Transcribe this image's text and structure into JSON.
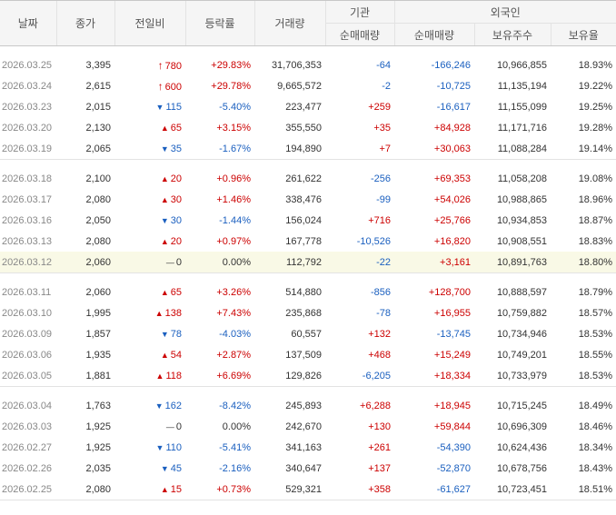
{
  "colors": {
    "up": "#cc0000",
    "down": "#1a5fbf",
    "header_bg": "#f5f5f5",
    "highlight_bg": "#f9f9e6"
  },
  "headers": {
    "date": "날짜",
    "close": "종가",
    "change": "전일비",
    "rate": "등락률",
    "volume": "거래량",
    "inst_group": "기관",
    "inst_net": "순매매량",
    "foreign_group": "외국인",
    "foreign_net": "순매매량",
    "foreign_holdings": "보유주수",
    "foreign_ratio": "보유율"
  },
  "groups": [
    [
      {
        "date": "2026.03.25",
        "close": "3,395",
        "change": "780",
        "change_dir": "upper",
        "rate": "+29.83%",
        "volume": "31,706,353",
        "inst": "-64",
        "foreign": "-166,246",
        "holdings": "10,966,855",
        "ratio": "18.93%"
      },
      {
        "date": "2026.03.24",
        "close": "2,615",
        "change": "600",
        "change_dir": "upper",
        "rate": "+29.78%",
        "volume": "9,665,572",
        "inst": "-2",
        "foreign": "-10,725",
        "holdings": "11,135,194",
        "ratio": "19.22%"
      },
      {
        "date": "2026.03.23",
        "close": "2,015",
        "change": "115",
        "change_dir": "down",
        "rate": "-5.40%",
        "volume": "223,477",
        "inst": "+259",
        "foreign": "-16,617",
        "holdings": "11,155,099",
        "ratio": "19.25%"
      },
      {
        "date": "2026.03.20",
        "close": "2,130",
        "change": "65",
        "change_dir": "up",
        "rate": "+3.15%",
        "volume": "355,550",
        "inst": "+35",
        "foreign": "+84,928",
        "holdings": "11,171,716",
        "ratio": "19.28%"
      },
      {
        "date": "2026.03.19",
        "close": "2,065",
        "change": "35",
        "change_dir": "down",
        "rate": "-1.67%",
        "volume": "194,890",
        "inst": "+7",
        "foreign": "+30,063",
        "holdings": "11,088,284",
        "ratio": "19.14%"
      }
    ],
    [
      {
        "date": "2026.03.18",
        "close": "2,100",
        "change": "20",
        "change_dir": "up",
        "rate": "+0.96%",
        "volume": "261,622",
        "inst": "-256",
        "foreign": "+69,353",
        "holdings": "11,058,208",
        "ratio": "19.08%"
      },
      {
        "date": "2026.03.17",
        "close": "2,080",
        "change": "30",
        "change_dir": "up",
        "rate": "+1.46%",
        "volume": "338,476",
        "inst": "-99",
        "foreign": "+54,026",
        "holdings": "10,988,865",
        "ratio": "18.96%"
      },
      {
        "date": "2026.03.16",
        "close": "2,050",
        "change": "30",
        "change_dir": "down",
        "rate": "-1.44%",
        "volume": "156,024",
        "inst": "+716",
        "foreign": "+25,766",
        "holdings": "10,934,853",
        "ratio": "18.87%"
      },
      {
        "date": "2026.03.13",
        "close": "2,080",
        "change": "20",
        "change_dir": "up",
        "rate": "+0.97%",
        "volume": "167,778",
        "inst": "-10,526",
        "foreign": "+16,820",
        "holdings": "10,908,551",
        "ratio": "18.83%"
      },
      {
        "date": "2026.03.12",
        "close": "2,060",
        "change": "0",
        "change_dir": "flat",
        "rate": "0.00%",
        "volume": "112,792",
        "inst": "-22",
        "foreign": "+3,161",
        "holdings": "10,891,763",
        "ratio": "18.80%",
        "highlight": true
      }
    ],
    [
      {
        "date": "2026.03.11",
        "close": "2,060",
        "change": "65",
        "change_dir": "up",
        "rate": "+3.26%",
        "volume": "514,880",
        "inst": "-856",
        "foreign": "+128,700",
        "holdings": "10,888,597",
        "ratio": "18.79%"
      },
      {
        "date": "2026.03.10",
        "close": "1,995",
        "change": "138",
        "change_dir": "up",
        "rate": "+7.43%",
        "volume": "235,868",
        "inst": "-78",
        "foreign": "+16,955",
        "holdings": "10,759,882",
        "ratio": "18.57%"
      },
      {
        "date": "2026.03.09",
        "close": "1,857",
        "change": "78",
        "change_dir": "down",
        "rate": "-4.03%",
        "volume": "60,557",
        "inst": "+132",
        "foreign": "-13,745",
        "holdings": "10,734,946",
        "ratio": "18.53%"
      },
      {
        "date": "2026.03.06",
        "close": "1,935",
        "change": "54",
        "change_dir": "up",
        "rate": "+2.87%",
        "volume": "137,509",
        "inst": "+468",
        "foreign": "+15,249",
        "holdings": "10,749,201",
        "ratio": "18.55%"
      },
      {
        "date": "2026.03.05",
        "close": "1,881",
        "change": "118",
        "change_dir": "up",
        "rate": "+6.69%",
        "volume": "129,826",
        "inst": "-6,205",
        "foreign": "+18,334",
        "holdings": "10,733,979",
        "ratio": "18.53%"
      }
    ],
    [
      {
        "date": "2026.03.04",
        "close": "1,763",
        "change": "162",
        "change_dir": "down",
        "rate": "-8.42%",
        "volume": "245,893",
        "inst": "+6,288",
        "foreign": "+18,945",
        "holdings": "10,715,245",
        "ratio": "18.49%"
      },
      {
        "date": "2026.03.03",
        "close": "1,925",
        "change": "0",
        "change_dir": "flat",
        "rate": "0.00%",
        "volume": "242,670",
        "inst": "+130",
        "foreign": "+59,844",
        "holdings": "10,696,309",
        "ratio": "18.46%"
      },
      {
        "date": "2026.02.27",
        "close": "1,925",
        "change": "110",
        "change_dir": "down",
        "rate": "-5.41%",
        "volume": "341,163",
        "inst": "+261",
        "foreign": "-54,390",
        "holdings": "10,624,436",
        "ratio": "18.34%"
      },
      {
        "date": "2026.02.26",
        "close": "2,035",
        "change": "45",
        "change_dir": "down",
        "rate": "-2.16%",
        "volume": "340,647",
        "inst": "+137",
        "foreign": "-52,870",
        "holdings": "10,678,756",
        "ratio": "18.43%"
      },
      {
        "date": "2026.02.25",
        "close": "2,080",
        "change": "15",
        "change_dir": "up",
        "rate": "+0.73%",
        "volume": "529,321",
        "inst": "+358",
        "foreign": "-61,627",
        "holdings": "10,723,451",
        "ratio": "18.51%"
      }
    ]
  ]
}
